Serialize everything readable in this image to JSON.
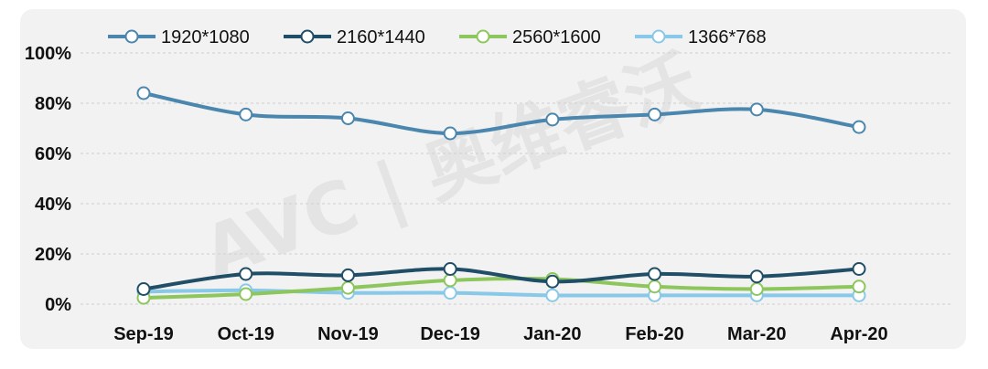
{
  "chart_data": {
    "type": "line",
    "categories": [
      "Sep-19",
      "Oct-19",
      "Nov-19",
      "Dec-19",
      "Jan-20",
      "Feb-20",
      "Mar-20",
      "Apr-20"
    ],
    "series": [
      {
        "name": "1920*1080",
        "color": "#4a86ad",
        "values": [
          84,
          75.5,
          74,
          68,
          73.5,
          75.5,
          77.5,
          70.5
        ]
      },
      {
        "name": "2160*1440",
        "color": "#1f4e66",
        "values": [
          6,
          12,
          11.5,
          14,
          9,
          12,
          11,
          14
        ]
      },
      {
        "name": "2560*1600",
        "color": "#8dc65c",
        "values": [
          2.5,
          4,
          6.5,
          9.5,
          10,
          7,
          6,
          7
        ]
      },
      {
        "name": "1366*768",
        "color": "#88c8e8",
        "values": [
          5,
          5.5,
          4.5,
          4.5,
          3.5,
          3.5,
          3.5,
          3.5
        ]
      }
    ],
    "yticks": [
      "0%",
      "20%",
      "40%",
      "60%",
      "80%",
      "100%"
    ],
    "ylim": [
      0,
      100
    ],
    "grid": true,
    "legend_position": "top",
    "title": "",
    "xlabel": "",
    "ylabel": ""
  },
  "watermark": "AVC | 奥维睿沃"
}
